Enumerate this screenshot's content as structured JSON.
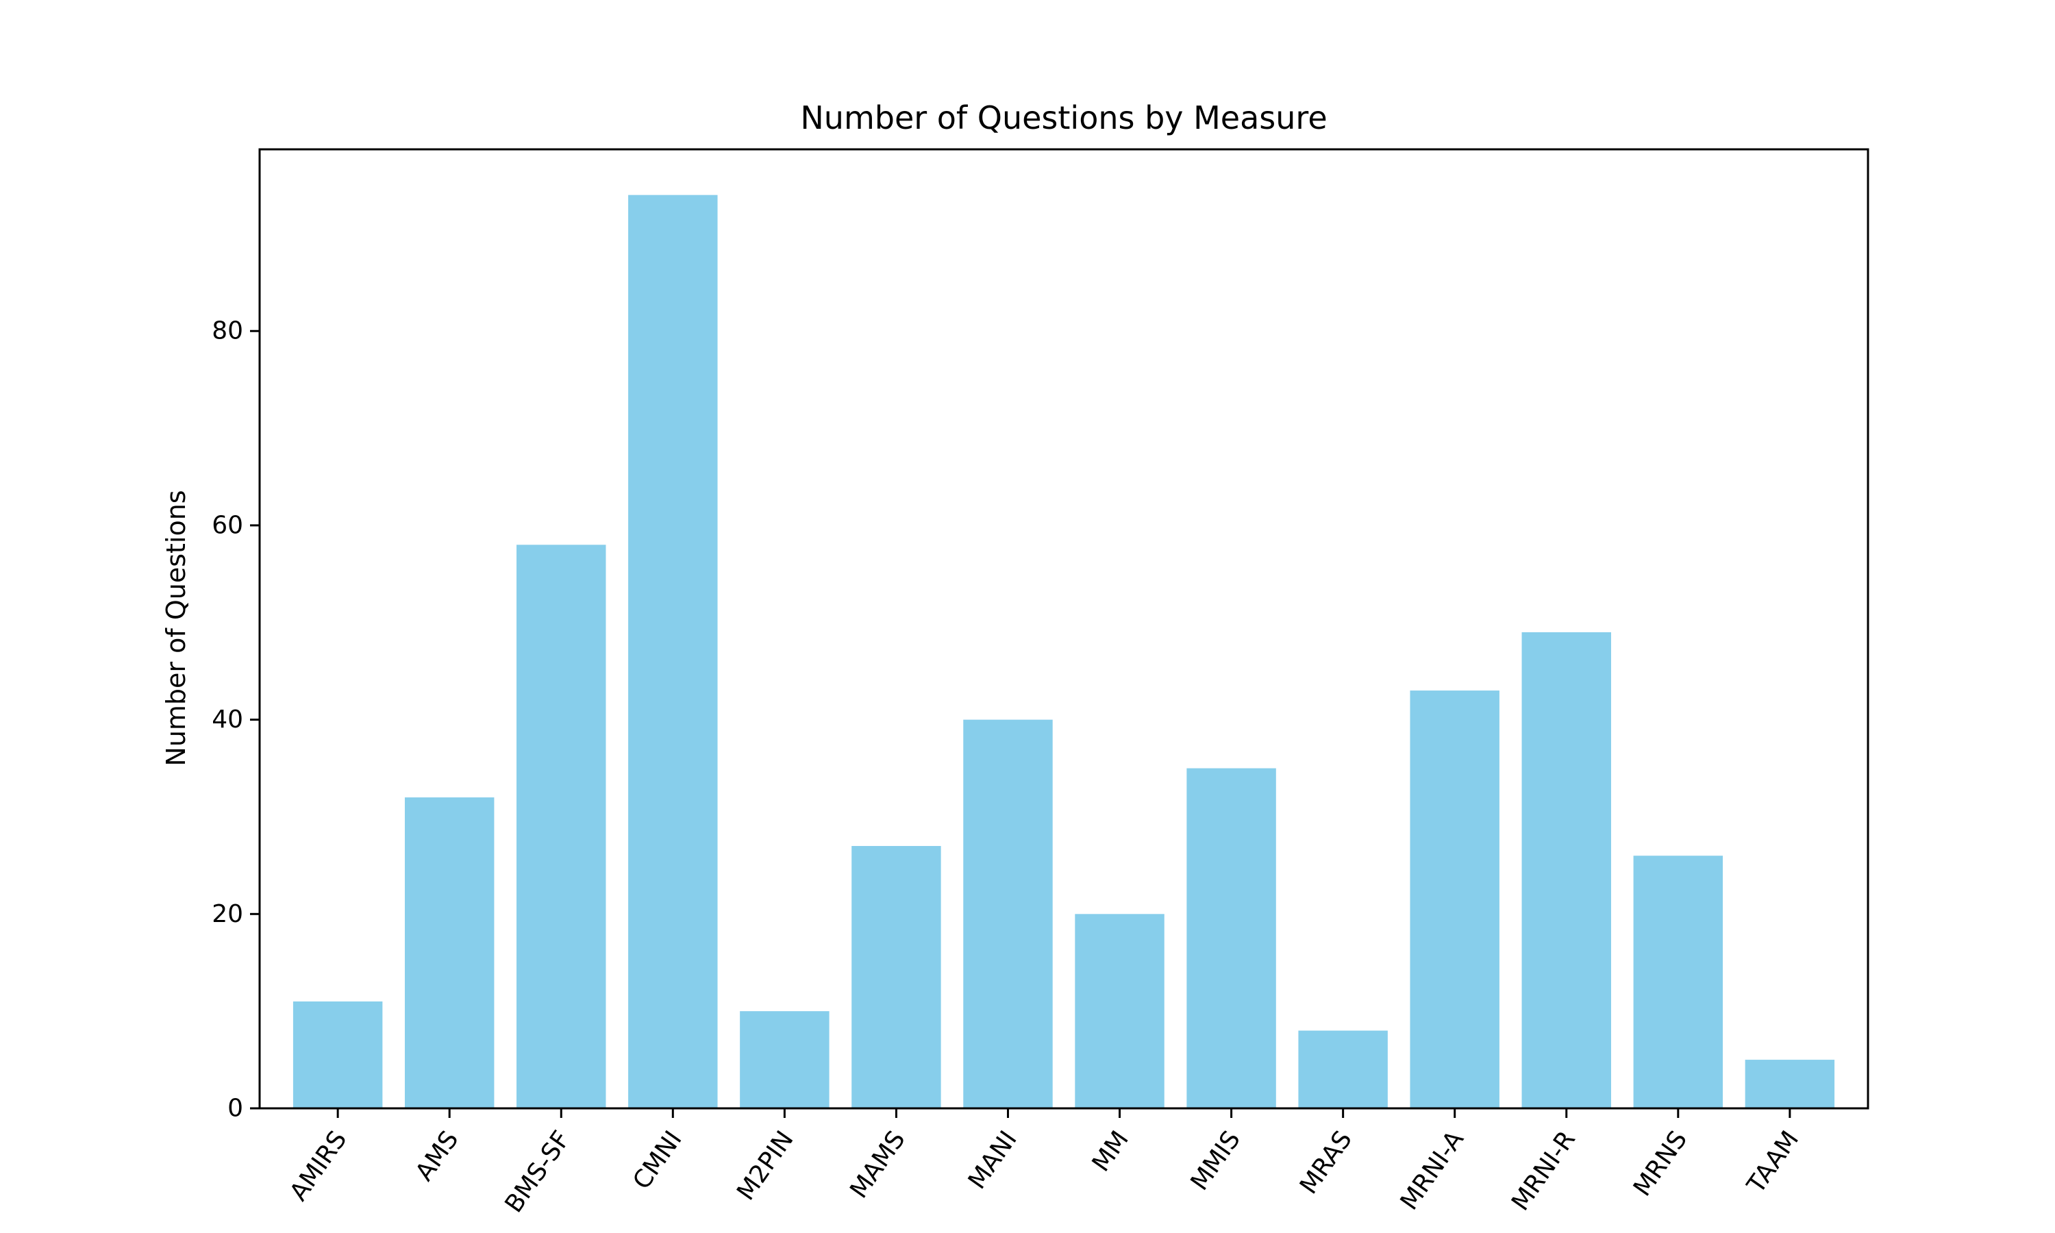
{
  "chart_data": {
    "type": "bar",
    "title": "Number of Questions by Measure",
    "xlabel": "",
    "ylabel": "Number of Questions",
    "categories": [
      "AMIRS",
      "AMS",
      "BMS-SF",
      "CMNI",
      "M2PIN",
      "MAMS",
      "MANI",
      "MM",
      "MMIS",
      "MRAS",
      "MRNI-A",
      "MRNI-R",
      "MRNS",
      "TAAM"
    ],
    "values": [
      11,
      32,
      58,
      94,
      10,
      27,
      40,
      20,
      35,
      8,
      43,
      49,
      26,
      5
    ],
    "ylim": [
      0,
      98.7
    ],
    "yticks": [
      0,
      20,
      40,
      60,
      80
    ],
    "bar_color": "#87CEEB",
    "grid": false,
    "legend": "none"
  }
}
